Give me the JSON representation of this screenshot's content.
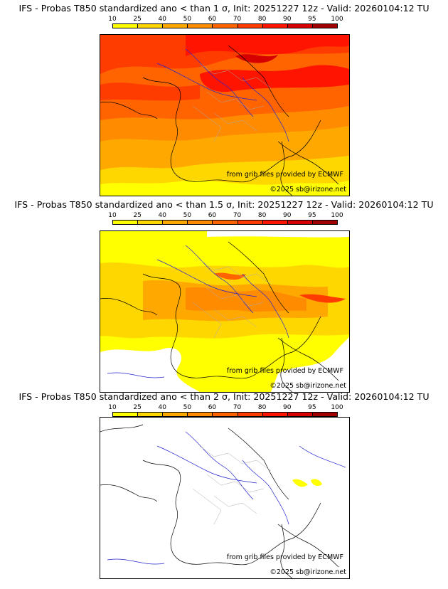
{
  "colors": {
    "scale": [
      "#ffff00",
      "#ffd700",
      "#ffa800",
      "#ff8c00",
      "#ff6400",
      "#ff3c00",
      "#ff1400",
      "#d60000",
      "#a00000",
      "#5a0000"
    ],
    "border": "#000000",
    "admin": "#aaaaaa",
    "rivers": "#2424d0"
  },
  "colorbar": {
    "ticks": [
      "10",
      "25",
      "40",
      "50",
      "60",
      "70",
      "80",
      "90",
      "95",
      "100"
    ]
  },
  "panels": [
    {
      "title": "IFS - Probas T850  standardized ano < than 1 σ, Init: 20251227 12z - Valid: 20260104:12 TU",
      "credit_grib": "from grib files provided by ECMWF",
      "credit_copy": "©2025 sb@irizone.net"
    },
    {
      "title": "IFS - Probas T850  standardized ano < than 1.5 σ, Init: 20251227 12z - Valid: 20260104:12 TU",
      "credit_grib": "from grib files provided by ECMWF",
      "credit_copy": "©2025 sb@irizone.net"
    },
    {
      "title": "IFS - Probas T850  standardized ano < than 2 σ, Init: 20251227 12z - Valid: 20260104:12 TU",
      "credit_grib": "from grib files provided by ECMWF",
      "credit_copy": "©2025 sb@irizone.net"
    }
  ]
}
